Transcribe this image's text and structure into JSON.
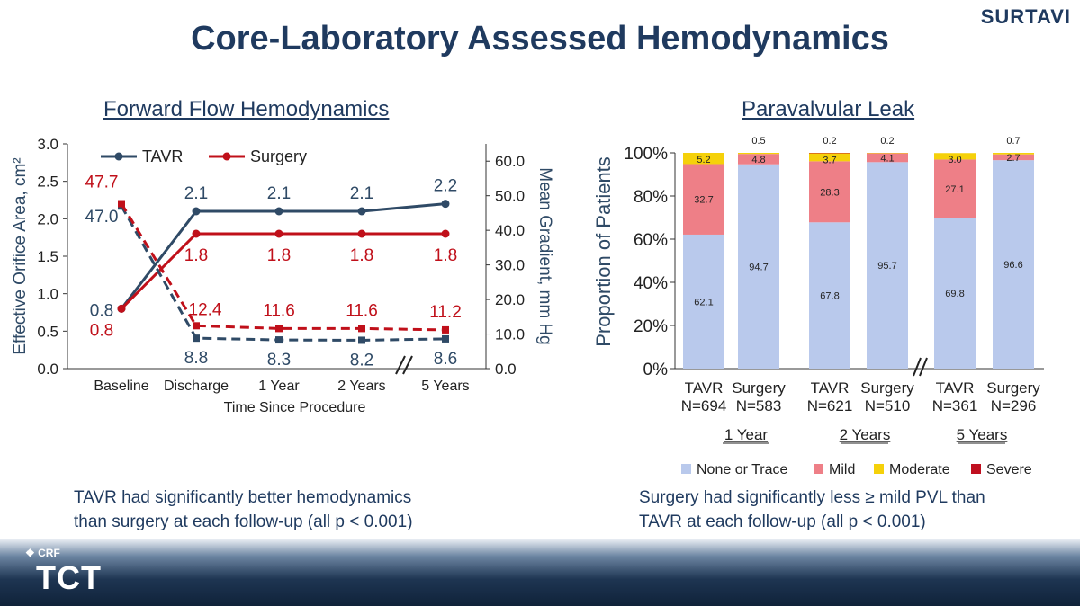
{
  "slide": {
    "title": "Core-Laboratory Assessed Hemodynamics",
    "trial": "SURTAVI",
    "footer": {
      "crf": "CRF",
      "tct": "TCT"
    }
  },
  "colors": {
    "tavr": "#2f4a66",
    "surgery": "#c0101a",
    "none": "#b9c9ec",
    "mild": "#ee7f87",
    "moderate": "#f5d10a",
    "severe": "#c01020"
  },
  "chart_data": [
    {
      "type": "line",
      "title": "Forward Flow Hemodynamics",
      "xlabel": "Time Since Procedure",
      "ylabel": "Effective Orifice Area, cm²",
      "y2label": "Mean Gradient, mm Hg",
      "categories": [
        "Baseline",
        "Discharge",
        "1 Year",
        "2 Years",
        "5 Years"
      ],
      "ylim": [
        0,
        3.0
      ],
      "y2lim": [
        0,
        65
      ],
      "yticks": [
        "0.0",
        "0.5",
        "1.0",
        "1.5",
        "2.0",
        "2.5",
        "3.0"
      ],
      "y2ticks": [
        "0.0",
        "10.0",
        "20.0",
        "30.0",
        "40.0",
        "50.0",
        "60.0"
      ],
      "legend": [
        "TAVR",
        "Surgery"
      ],
      "series": [
        {
          "name": "TAVR EOA",
          "axis": "left",
          "style": "solid",
          "group": "tavr",
          "values": [
            0.8,
            2.1,
            2.1,
            2.1,
            2.2
          ],
          "labels": [
            "0.8",
            "2.1",
            "2.1",
            "2.1",
            "2.2"
          ]
        },
        {
          "name": "Surgery EOA",
          "axis": "left",
          "style": "solid",
          "group": "surgery",
          "values": [
            0.8,
            1.8,
            1.8,
            1.8,
            1.8
          ],
          "labels": [
            "0.8",
            "1.8",
            "1.8",
            "1.8",
            "1.8"
          ]
        },
        {
          "name": "TAVR Gradient",
          "axis": "right",
          "style": "dashed",
          "group": "tavr",
          "values": [
            47.0,
            8.8,
            8.3,
            8.2,
            8.6
          ],
          "labels": [
            "47.0",
            "8.8",
            "8.3",
            "8.2",
            "8.6"
          ]
        },
        {
          "name": "Surgery Gradient",
          "axis": "right",
          "style": "dashed",
          "group": "surgery",
          "values": [
            47.7,
            12.4,
            11.6,
            11.6,
            11.2
          ],
          "labels": [
            "47.7",
            "12.4",
            "11.6",
            "11.6",
            "11.2"
          ]
        }
      ],
      "note": [
        "TAVR had significantly better hemodynamics",
        "than surgery at each follow-up (all p < 0.001)"
      ]
    },
    {
      "type": "bar",
      "stacked": true,
      "title": "Paravalvular Leak",
      "ylabel": "Proportion of Patients",
      "ylim": [
        0,
        100
      ],
      "yticks": [
        "0%",
        "20%",
        "40%",
        "60%",
        "80%",
        "100%"
      ],
      "bars": [
        {
          "group": "TAVR",
          "n": "N=694",
          "none": 62.1,
          "mild": 32.7,
          "moderate": 5.2,
          "severe": 0,
          "labels": {
            "none": "62.1",
            "mild": "32.7",
            "moderate": "5.2",
            "top": ""
          }
        },
        {
          "group": "Surgery",
          "n": "N=583",
          "none": 94.7,
          "mild": 4.8,
          "moderate": 0.5,
          "severe": 0,
          "labels": {
            "none": "94.7",
            "mild": "4.8",
            "moderate": "",
            "top": "0.5"
          }
        },
        {
          "group": "TAVR",
          "n": "N=621",
          "none": 67.8,
          "mild": 28.3,
          "moderate": 3.7,
          "severe": 0.2,
          "labels": {
            "none": "67.8",
            "mild": "28.3",
            "moderate": "3.7",
            "top": "0.2"
          }
        },
        {
          "group": "Surgery",
          "n": "N=510",
          "none": 95.7,
          "mild": 4.1,
          "moderate": 0.2,
          "severe": 0,
          "labels": {
            "none": "95.7",
            "mild": "4.1",
            "moderate": "",
            "top": "0.2"
          }
        },
        {
          "group": "TAVR",
          "n": "N=361",
          "none": 69.8,
          "mild": 27.1,
          "moderate": 3.0,
          "severe": 0,
          "labels": {
            "none": "69.8",
            "mild": "27.1",
            "moderate": "3.0",
            "top": ""
          }
        },
        {
          "group": "Surgery",
          "n": "N=296",
          "none": 96.6,
          "mild": 2.7,
          "moderate": 0.7,
          "severe": 0,
          "labels": {
            "none": "96.6",
            "mild": "2.7",
            "moderate": "",
            "top": "0.7"
          }
        }
      ],
      "periods": [
        "1 Year",
        "2 Years",
        "5 Years"
      ],
      "legend": [
        "None or Trace",
        "Mild",
        "Moderate",
        "Severe"
      ],
      "note": [
        "Surgery had significantly less ≥ mild PVL than",
        "TAVR at each follow-up (all p < 0.001)"
      ]
    }
  ]
}
